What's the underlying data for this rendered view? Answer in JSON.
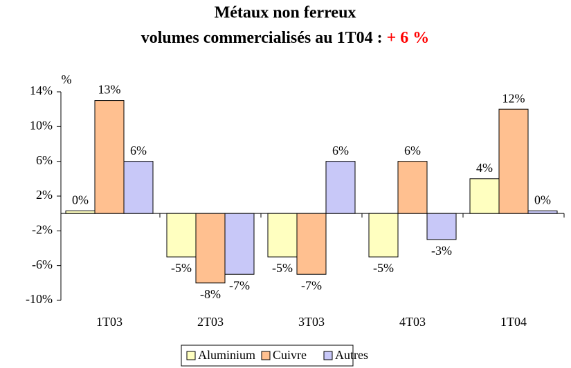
{
  "chart_data": {
    "type": "bar",
    "title": "Métaux non ferreux",
    "subtitle": "volumes commercialisés au 1T04 :",
    "annotation": "+ 6 %",
    "y_label": "%",
    "categories": [
      "1T03",
      "2T03",
      "3T03",
      "4T03",
      "1T04"
    ],
    "series": [
      {
        "name": "Aluminium",
        "color": "#ffffc0",
        "values": [
          0.3,
          -5,
          -5,
          -5,
          4
        ],
        "value_labels": [
          "0%",
          "-5%",
          "-5%",
          "-5%",
          "4%"
        ]
      },
      {
        "name": "Cuivre",
        "color": "#ffc090",
        "values": [
          13,
          -8,
          -7,
          6,
          12
        ],
        "value_labels": [
          "13%",
          "-8%",
          "-7%",
          "6%",
          "12%"
        ]
      },
      {
        "name": "Autres",
        "color": "#c8c8f8",
        "values": [
          6,
          -7,
          6,
          -3,
          0.3
        ],
        "value_labels": [
          "6%",
          "-7%",
          "6%",
          "-3%",
          "0%"
        ]
      }
    ],
    "ylim": [
      -10,
      14
    ],
    "yticks": [
      {
        "value": -10,
        "label": "-10%"
      },
      {
        "value": -6,
        "label": "-6%"
      },
      {
        "value": -2,
        "label": "-2%"
      },
      {
        "value": 2,
        "label": "2%"
      },
      {
        "value": 6,
        "label": "6%"
      },
      {
        "value": 10,
        "label": "10%"
      },
      {
        "value": 14,
        "label": "14%"
      }
    ],
    "legend": "bottom"
  }
}
